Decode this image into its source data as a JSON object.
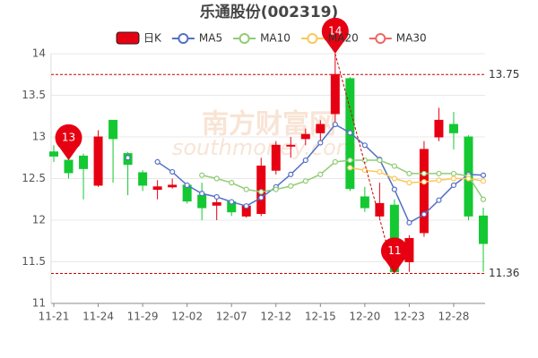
{
  "chart_data": {
    "type": "candlestick",
    "title": "乐通股份(002319)",
    "watermark": [
      "南方财富网",
      "southmoney.com"
    ],
    "categories": [
      "11-21",
      null,
      null,
      "11-24",
      null,
      null,
      "11-29",
      null,
      null,
      "12-02",
      null,
      null,
      "12-07",
      null,
      null,
      "12-12",
      null,
      null,
      "12-15",
      null,
      null,
      "12-20",
      null,
      null,
      "12-23",
      null,
      null,
      "12-28",
      null,
      null
    ],
    "series": [
      {
        "name": "日K",
        "color": "#e60012",
        "down_color": "#14c832",
        "open": [
          12.82,
          12.72,
          12.77,
          12.42,
          13.2,
          12.8,
          12.57,
          12.37,
          12.4,
          12.42,
          12.3,
          12.18,
          12.22,
          12.05,
          12.08,
          12.6,
          12.89,
          12.98,
          13.05,
          13.28,
          13.7,
          12.28,
          12.05,
          12.18,
          11.5,
          11.85,
          13.0,
          13.15,
          13.0,
          12.05
        ],
        "close": [
          12.77,
          12.57,
          12.62,
          13.0,
          12.98,
          12.67,
          12.42,
          12.4,
          12.42,
          12.23,
          12.15,
          12.21,
          12.1,
          12.17,
          12.65,
          12.9,
          12.9,
          13.03,
          13.15,
          13.75,
          12.38,
          12.15,
          12.2,
          11.38,
          11.78,
          12.85,
          13.2,
          13.05,
          12.05,
          11.72
        ],
        "high": [
          12.9,
          12.8,
          12.8,
          13.08,
          13.2,
          12.82,
          12.6,
          12.48,
          12.5,
          12.45,
          12.45,
          12.3,
          12.25,
          12.2,
          12.75,
          12.95,
          13.0,
          13.1,
          13.2,
          14.0,
          13.72,
          12.4,
          12.45,
          12.25,
          11.82,
          12.95,
          13.35,
          13.3,
          13.02,
          12.15
        ],
        "low": [
          12.7,
          12.5,
          12.25,
          12.4,
          12.45,
          12.3,
          12.35,
          12.25,
          12.38,
          12.2,
          12.0,
          12.0,
          12.05,
          12.03,
          12.05,
          12.55,
          12.75,
          12.9,
          12.95,
          13.15,
          12.35,
          12.1,
          12.03,
          11.36,
          11.38,
          11.8,
          12.95,
          12.85,
          12.0,
          11.38
        ]
      },
      {
        "name": "MA5",
        "color": "#5470c6",
        "values": [
          null,
          null,
          null,
          null,
          null,
          12.75,
          null,
          12.7,
          12.58,
          12.42,
          12.32,
          12.28,
          12.22,
          12.17,
          12.27,
          12.4,
          12.55,
          12.72,
          12.93,
          13.15,
          13.05,
          12.9,
          12.73,
          12.37,
          11.97,
          12.07,
          12.24,
          12.42,
          12.55,
          12.54
        ]
      },
      {
        "name": "MA10",
        "color": "#91cc75",
        "values": [
          null,
          null,
          null,
          null,
          null,
          null,
          null,
          null,
          null,
          null,
          12.54,
          12.5,
          12.45,
          12.37,
          12.34,
          12.37,
          12.41,
          12.47,
          12.55,
          12.7,
          12.72,
          12.72,
          12.72,
          12.65,
          12.56,
          12.56,
          12.56,
          12.56,
          12.53,
          12.25
        ]
      },
      {
        "name": "MA20",
        "color": "#fac858",
        "values": [
          null,
          null,
          null,
          null,
          null,
          null,
          null,
          null,
          null,
          null,
          null,
          null,
          null,
          null,
          null,
          null,
          null,
          null,
          null,
          null,
          12.63,
          12.6,
          12.58,
          12.5,
          12.45,
          12.46,
          12.48,
          12.5,
          12.5,
          12.47
        ]
      },
      {
        "name": "MA30",
        "color": "#ee6666",
        "values": [
          null,
          null,
          null,
          null,
          null,
          null,
          null,
          null,
          null,
          null,
          null,
          null,
          null,
          null,
          null,
          null,
          null,
          null,
          null,
          null,
          null,
          null,
          null,
          null,
          null,
          null,
          null,
          null,
          null,
          null
        ]
      }
    ],
    "mark_lines": [
      13.75,
      11.36
    ],
    "mark_points": [
      {
        "value": 12.72,
        "label": "13"
      },
      {
        "value": 14.0,
        "label": "14"
      },
      {
        "value": 11.36,
        "label": "11"
      }
    ],
    "ylim": [
      11,
      14
    ],
    "yticks": [
      11,
      11.5,
      12,
      12.5,
      13,
      13.5,
      14
    ],
    "grid": true
  }
}
